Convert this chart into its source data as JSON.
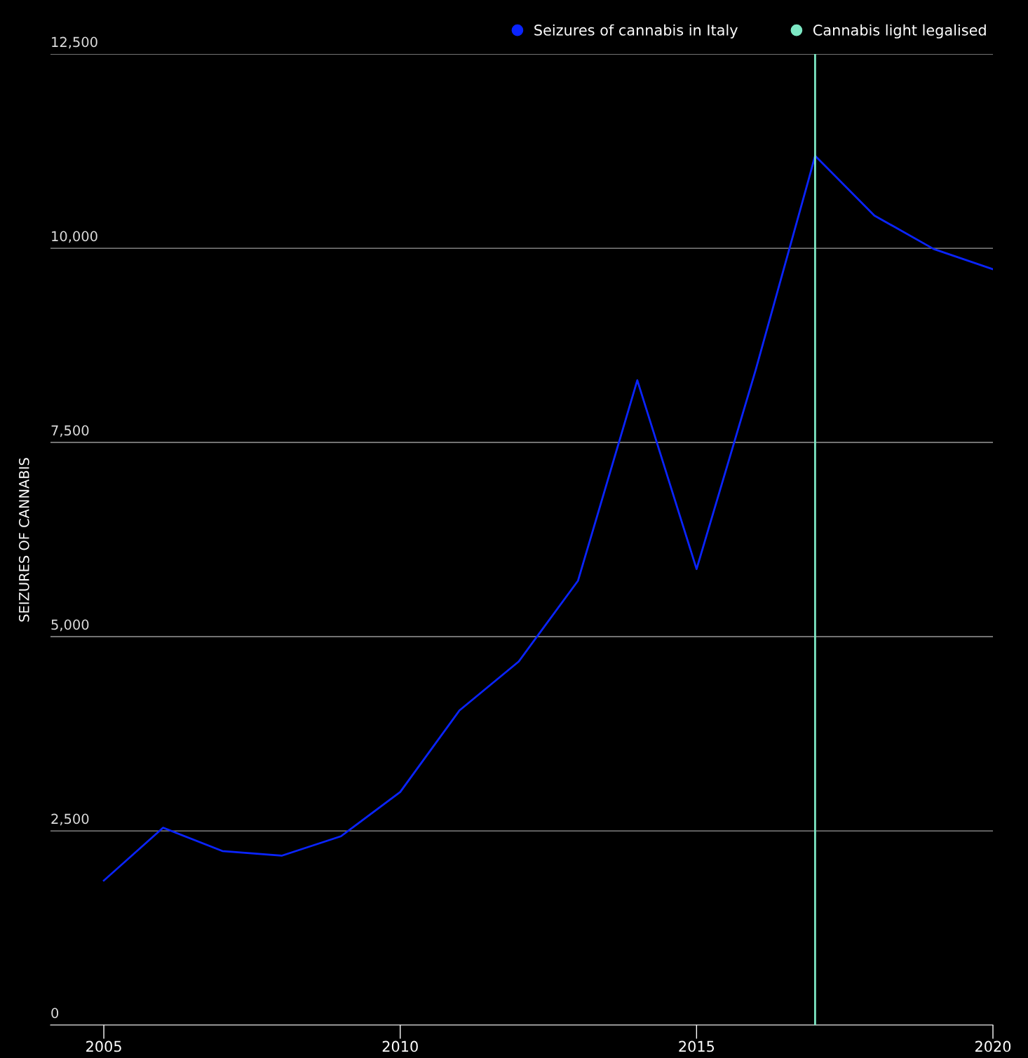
{
  "chart_data": {
    "type": "line",
    "ylabel": "SEIZURES OF CANNABIS",
    "x": [
      2005,
      2006,
      2007,
      2008,
      2009,
      2010,
      2011,
      2012,
      2013,
      2014,
      2015,
      2016,
      2016.9,
      2017,
      2018,
      2019,
      2020
    ],
    "series": [
      {
        "name": "Seizures of cannabis in Italy",
        "color": "#0a24ff",
        "values": [
          1860,
          2540,
          2240,
          2180,
          2430,
          3000,
          4050,
          4680,
          5720,
          8300,
          5870,
          8440,
          10910,
          11190,
          10420,
          9990,
          9730
        ]
      }
    ],
    "xlim": [
      2004.1,
      2020
    ],
    "ylim": [
      0,
      12500
    ],
    "xticks": [
      2005,
      2010,
      2015,
      2020
    ],
    "yticks": [
      0,
      {
        "value": 2500,
        "label": "2,500"
      },
      {
        "value": 5000,
        "label": "5,000"
      },
      {
        "value": 7500,
        "label": "7,500"
      },
      {
        "value": 10000,
        "label": "10,000"
      },
      {
        "value": 12500,
        "label": "12,500"
      }
    ],
    "ref_lines": [
      {
        "axis": "x",
        "value": 2017,
        "label": "Cannabis light legalised",
        "color": "#7de8c4"
      }
    ],
    "grid": "y",
    "legend": "top right",
    "marker": "none"
  }
}
